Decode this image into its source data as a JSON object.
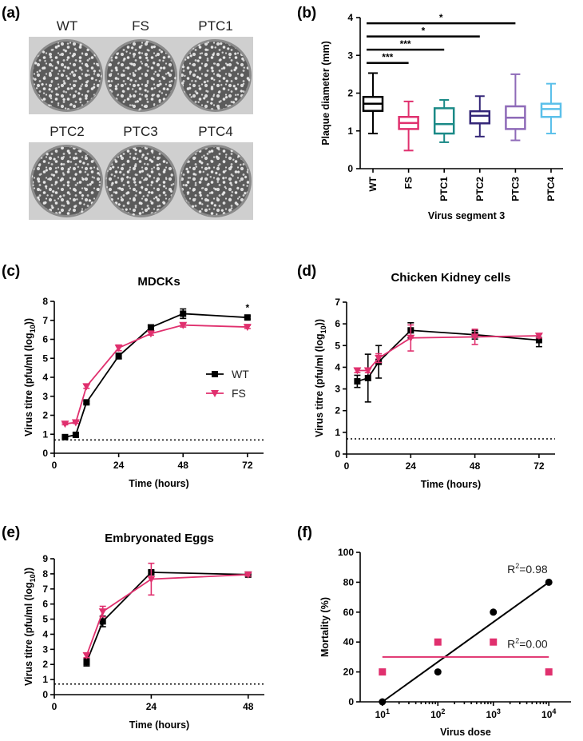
{
  "panels": {
    "a": {
      "label": "(a)",
      "plates": [
        "WT",
        "FS",
        "PTC1",
        "PTC2",
        "PTC3",
        "PTC4"
      ]
    },
    "b": {
      "label": "(b)"
    },
    "c": {
      "label": "(c)"
    },
    "d": {
      "label": "(d)"
    },
    "e": {
      "label": "(e)"
    },
    "f": {
      "label": "(f)"
    }
  },
  "colors": {
    "WT": "#000000",
    "FS": "#e0306e",
    "PTC1": "#1b8a87",
    "PTC2": "#332577",
    "PTC3": "#8e6ab8",
    "PTC4": "#5bc0ea"
  },
  "chart_data": [
    {
      "id": "b",
      "type": "boxplot",
      "title": "",
      "xlabel": "Virus segment 3",
      "ylabel": "Plaque diameter (mm)",
      "ylim": [
        0,
        4
      ],
      "yticks": [
        "0",
        "1",
        "2",
        "3",
        "4"
      ],
      "categories": [
        "WT",
        "FS",
        "PTC1",
        "PTC2",
        "PTC3",
        "PTC4"
      ],
      "boxes": [
        {
          "min": 0.93,
          "q1": 1.53,
          "median": 1.72,
          "q3": 1.9,
          "max": 2.53
        },
        {
          "min": 0.48,
          "q1": 1.05,
          "median": 1.21,
          "q3": 1.37,
          "max": 1.78
        },
        {
          "min": 0.7,
          "q1": 0.93,
          "median": 1.18,
          "q3": 1.6,
          "max": 1.82
        },
        {
          "min": 0.85,
          "q1": 1.2,
          "median": 1.4,
          "q3": 1.52,
          "max": 1.92
        },
        {
          "min": 0.75,
          "q1": 1.05,
          "median": 1.35,
          "q3": 1.65,
          "max": 2.5
        },
        {
          "min": 0.93,
          "q1": 1.37,
          "median": 1.58,
          "q3": 1.72,
          "max": 2.25
        }
      ],
      "significance": [
        {
          "from": "WT",
          "to": "FS",
          "label": "***",
          "y": 2.8
        },
        {
          "from": "WT",
          "to": "PTC1",
          "label": "***",
          "y": 3.15
        },
        {
          "from": "WT",
          "to": "PTC2",
          "label": "*",
          "y": 3.5
        },
        {
          "from": "WT",
          "to": "PTC3",
          "label": "*",
          "y": 3.85
        }
      ]
    },
    {
      "id": "c",
      "type": "line",
      "title": "MDCKs",
      "xlabel": "Time (hours)",
      "ylabel": "Virus titre (pfu/ml (log10))",
      "xlim": [
        0,
        78
      ],
      "xticks": [
        "0",
        "24",
        "48",
        "72"
      ],
      "ylim": [
        0,
        8
      ],
      "yticks": [
        "0",
        "1",
        "2",
        "3",
        "4",
        "5",
        "6",
        "7",
        "8"
      ],
      "detection_limit": 0.7,
      "legend": {
        "position": "center-right",
        "entries": [
          "WT",
          "FS"
        ]
      },
      "annotations": [
        {
          "x": 72,
          "y": 7.5,
          "text": "*"
        }
      ],
      "series": [
        {
          "name": "WT",
          "marker": "square",
          "x": [
            4,
            8,
            12,
            24,
            36,
            48,
            72
          ],
          "y": [
            0.85,
            0.97,
            2.68,
            5.12,
            6.63,
            7.35,
            7.15
          ],
          "err": [
            0.05,
            0.1,
            0.07,
            0.15,
            0.12,
            0.25,
            0.08
          ]
        },
        {
          "name": "FS",
          "marker": "triangle-down",
          "x": [
            4,
            8,
            12,
            24,
            36,
            48,
            72
          ],
          "y": [
            1.55,
            1.62,
            3.52,
            5.55,
            6.3,
            6.75,
            6.65
          ],
          "err": [
            0.05,
            0.05,
            0.1,
            0.15,
            0.08,
            0.1,
            0.08
          ]
        }
      ]
    },
    {
      "id": "d",
      "type": "line",
      "title": "Chicken Kidney cells",
      "xlabel": "Time (hours)",
      "ylabel": "Virus titre (pfu/ml (log10))",
      "xlim": [
        0,
        78
      ],
      "xticks": [
        "0",
        "24",
        "48",
        "72"
      ],
      "ylim": [
        0,
        7
      ],
      "yticks": [
        "0",
        "1",
        "2",
        "3",
        "4",
        "5",
        "6",
        "7"
      ],
      "detection_limit": 0.7,
      "series": [
        {
          "name": "WT",
          "marker": "square",
          "x": [
            4,
            8,
            12,
            24,
            48,
            72
          ],
          "y": [
            3.35,
            3.5,
            4.25,
            5.7,
            5.5,
            5.25
          ],
          "err": [
            0.28,
            1.1,
            0.75,
            0.35,
            0.2,
            0.3
          ]
        },
        {
          "name": "FS",
          "marker": "triangle-down",
          "x": [
            4,
            8,
            12,
            24,
            48,
            72
          ],
          "y": [
            3.85,
            3.85,
            4.42,
            5.35,
            5.4,
            5.45
          ],
          "err": [
            0.1,
            0.1,
            0.2,
            0.6,
            0.35,
            0.1
          ]
        }
      ]
    },
    {
      "id": "e",
      "type": "line",
      "title": "Embryonated Eggs",
      "xlabel": "Time (hours)",
      "ylabel": "Virus titre (pfu/ml (log10))",
      "xlim": [
        0,
        52
      ],
      "xticks": [
        "0",
        "24",
        "48"
      ],
      "ylim": [
        0,
        9
      ],
      "yticks": [
        "0",
        "1",
        "2",
        "3",
        "4",
        "5",
        "6",
        "7",
        "8",
        "9"
      ],
      "detection_limit": 0.7,
      "series": [
        {
          "name": "WT",
          "marker": "square",
          "x": [
            8,
            12,
            24,
            48
          ],
          "y": [
            2.15,
            4.85,
            8.1,
            7.95
          ],
          "err": [
            0.25,
            0.35,
            0.1,
            0.1
          ]
        },
        {
          "name": "FS",
          "marker": "triangle-down",
          "x": [
            8,
            12,
            24,
            48
          ],
          "y": [
            2.6,
            5.5,
            7.65,
            7.95
          ],
          "err": [
            0.15,
            0.35,
            1.05,
            0.1
          ]
        }
      ]
    },
    {
      "id": "f",
      "type": "scatter",
      "title": "",
      "xlabel": "Virus dose",
      "ylabel": "Mortality (%)",
      "xscale": "log",
      "xlim": [
        0.6,
        4.4
      ],
      "xticks": [
        {
          "base": "10",
          "exp": "1"
        },
        {
          "base": "10",
          "exp": "2"
        },
        {
          "base": "10",
          "exp": "3"
        },
        {
          "base": "10",
          "exp": "4"
        }
      ],
      "ylim": [
        0,
        100
      ],
      "yticks": [
        "0",
        "20",
        "40",
        "60",
        "80",
        "100"
      ],
      "series": [
        {
          "name": "WT",
          "marker": "circle",
          "logx": [
            1,
            2,
            3,
            4
          ],
          "y": [
            0,
            20,
            60,
            80
          ],
          "fit": {
            "x0": 1,
            "y0": 0,
            "x1": 4,
            "y1": 80
          },
          "r2_prefix": "R",
          "r2_sup": "2",
          "r2_value": "=0.98",
          "r2_pos": [
            3.25,
            86
          ]
        },
        {
          "name": "FS",
          "marker": "square",
          "logx": [
            1,
            2,
            3,
            4
          ],
          "y": [
            20,
            40,
            40,
            20
          ],
          "fit": {
            "x0": 1,
            "y0": 30,
            "x1": 4,
            "y1": 30
          },
          "r2_prefix": "R",
          "r2_sup": "2",
          "r2_value": "=0.00",
          "r2_pos": [
            3.25,
            36
          ]
        }
      ]
    }
  ]
}
